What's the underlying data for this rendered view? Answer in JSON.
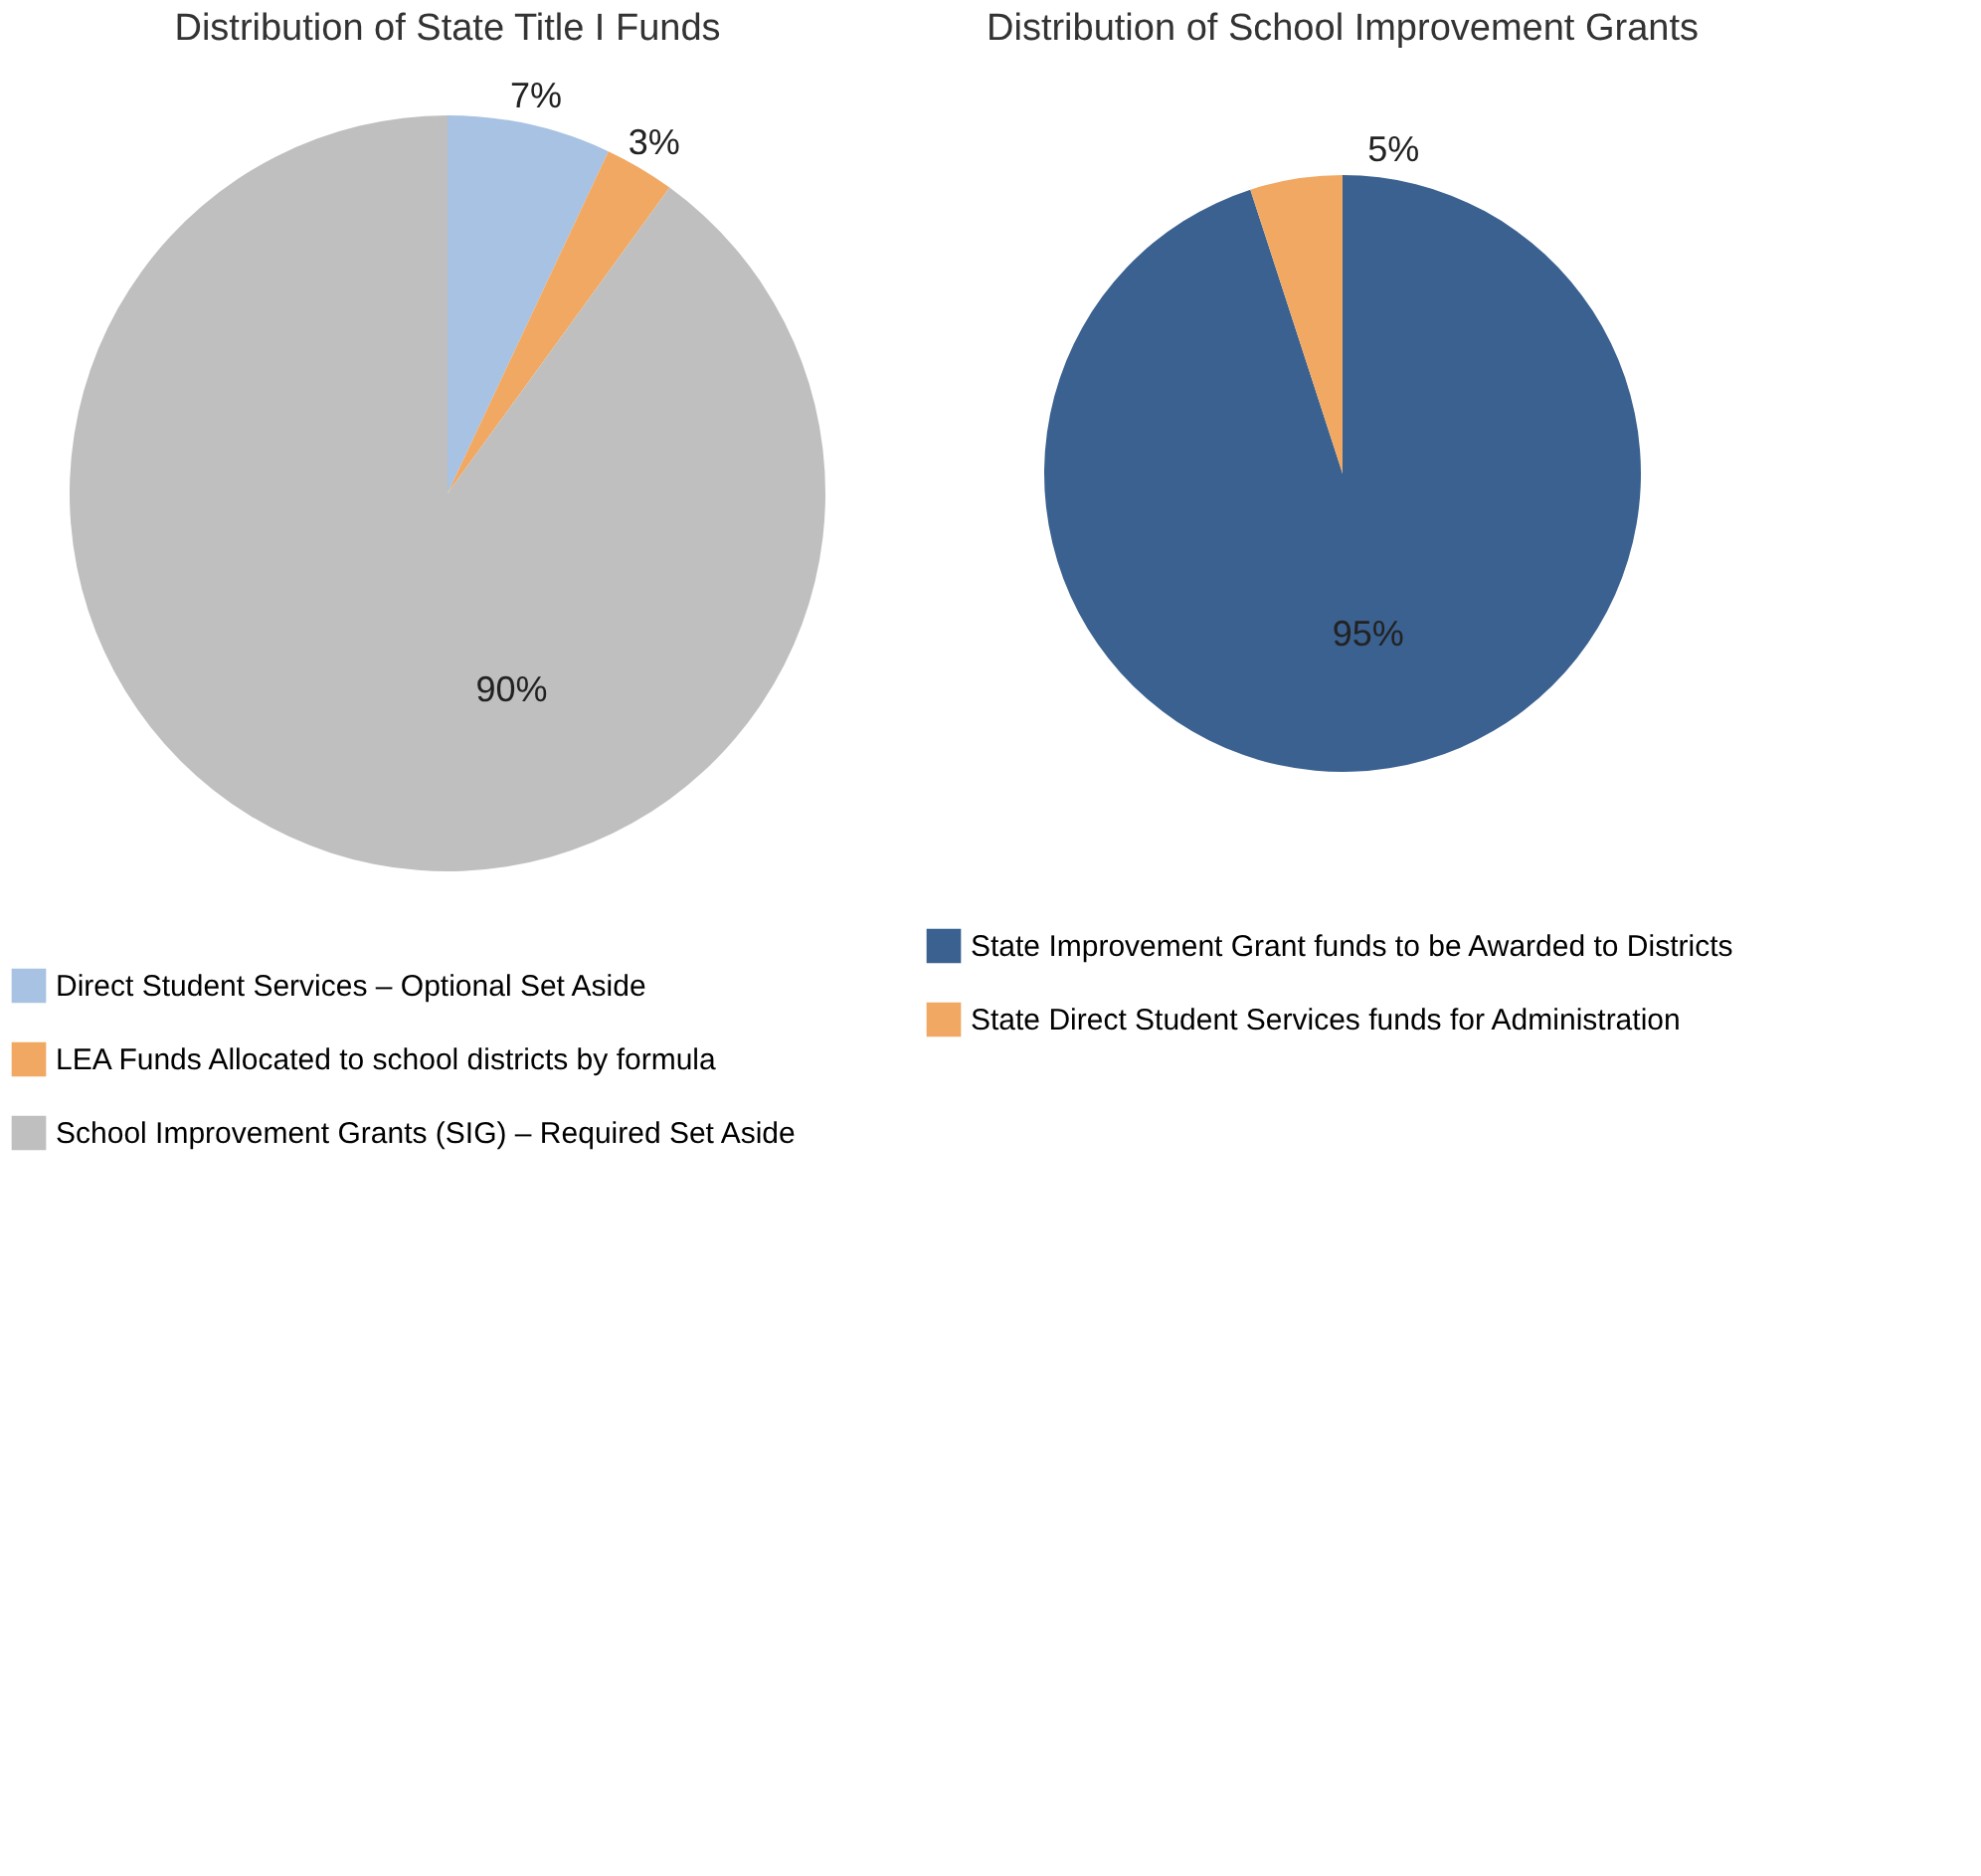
{
  "chart_data": [
    {
      "type": "pie",
      "title": "Distribution of State Title I Funds",
      "categories": [
        "Direct Student Services – Optional Set Aside",
        "LEA Funds Allocated to school districts by formula",
        "School Improvement Grants (SIG) – Required Set Aside"
      ],
      "values": [
        7,
        3,
        90
      ],
      "colors": [
        "#a7c2e2",
        "#f0a862",
        "#bfbfbf"
      ],
      "value_labels": [
        "7%",
        "3%",
        "90%"
      ],
      "legend": "bottom"
    },
    {
      "type": "pie",
      "title": "Distribution of School Improvement Grants",
      "categories": [
        "State Improvement Grant funds to be Awarded to Districts",
        "State Direct Student Services funds for Administration"
      ],
      "values": [
        95,
        5
      ],
      "colors": [
        "#3a6190",
        "#f0a862"
      ],
      "value_labels": [
        "95%",
        "5%"
      ],
      "legend": "bottom"
    }
  ]
}
